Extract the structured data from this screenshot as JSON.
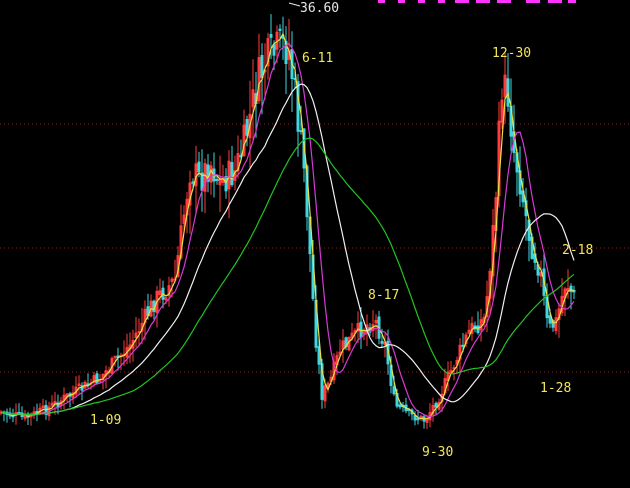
{
  "chart_data": {
    "type": "candlestick",
    "high_marker": "36.60",
    "annotations": [
      {
        "text": "6-11"
      },
      {
        "text": "12-30"
      },
      {
        "text": "2-18"
      },
      {
        "text": "8-17"
      },
      {
        "text": "1-28"
      },
      {
        "text": "1-09"
      },
      {
        "text": "9-30"
      }
    ],
    "colors": {
      "background": "#000000",
      "up": "#ff3b3b",
      "down": "#3fd6e0",
      "gridline": "#8a2222",
      "ma_short": "#e8e04a",
      "ma_mid": "#d63ad6",
      "ma_long": "#f0f0f0",
      "ma_longest": "#22c322",
      "label": "#f2e65a",
      "top_banner": "#ff33ff"
    }
  }
}
